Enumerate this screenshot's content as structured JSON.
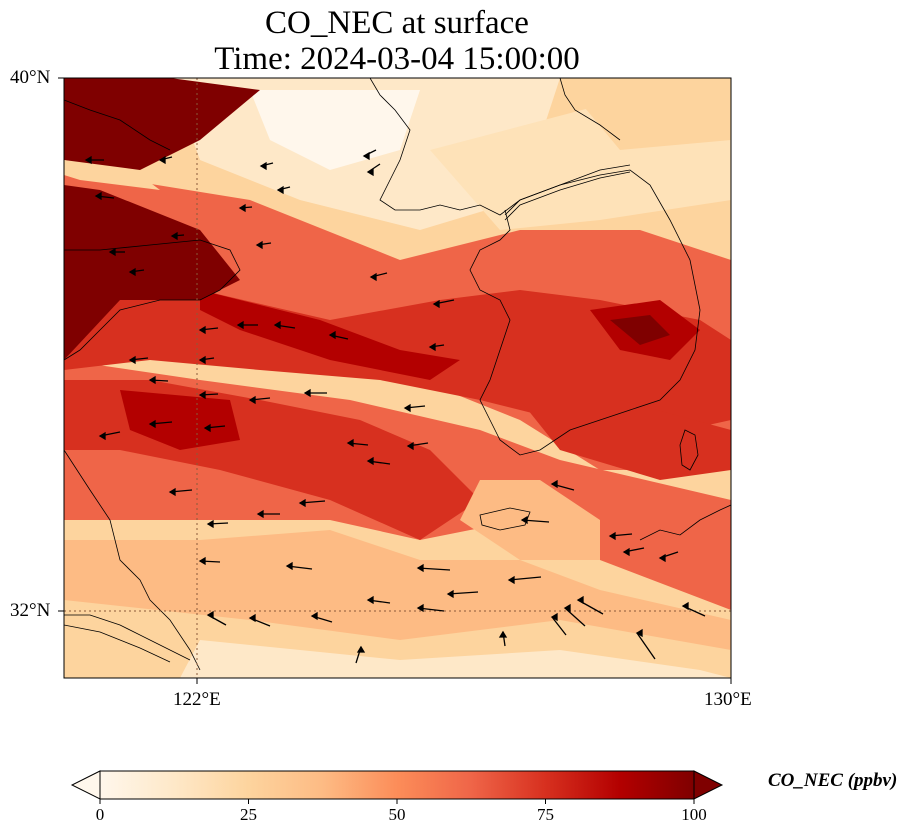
{
  "title": {
    "line1": "CO_NEC at surface",
    "line2": "Time: 2024-03-04 15:00:00"
  },
  "map": {
    "lat_labels": [
      "40°N",
      "32°N"
    ],
    "lon_labels": [
      "122°E",
      "130°E"
    ],
    "extent": {
      "lon_min": 120,
      "lon_max": 130,
      "lat_min": 31,
      "lat_max": 40
    },
    "gridlines": {
      "lons": [
        122
      ],
      "lats": [
        32
      ],
      "style": "dotted"
    },
    "colormap": "OrRd"
  },
  "colorbar": {
    "label": "CO_NEC (ppbv)",
    "ticks": [
      "0",
      "25",
      "50",
      "75",
      "100"
    ],
    "min": 0,
    "max": 100,
    "extend": "both",
    "colors": [
      "#fff7ec",
      "#fee8c8",
      "#fdd49e",
      "#fdbb84",
      "#fc8d59",
      "#ef6548",
      "#d7301f",
      "#b30000",
      "#7f0000"
    ]
  }
}
